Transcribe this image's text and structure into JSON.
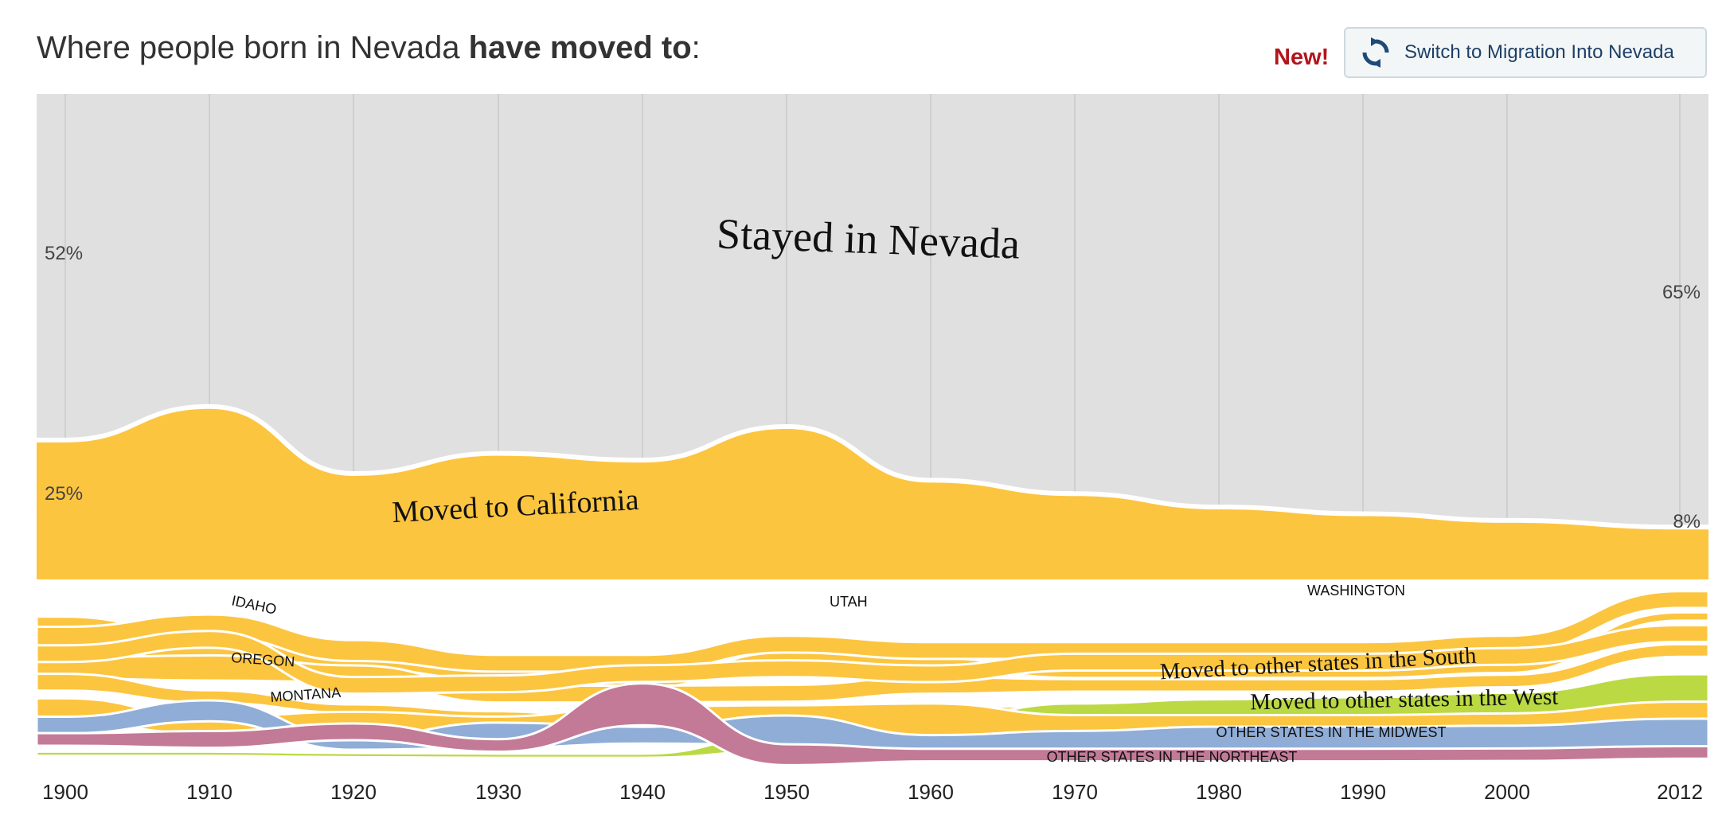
{
  "header": {
    "title_prefix": "Where people born in Nevada ",
    "title_bold": "have moved to",
    "title_suffix": ":",
    "new_badge": "New!",
    "switch_label": "Switch to Migration Into Nevada"
  },
  "colors": {
    "stayed": "#e0e0e0",
    "west": "#fcc540",
    "south": "#bbd943",
    "midwest": "#8fadd6",
    "northeast": "#c37a96",
    "grid": "#c9c9c9",
    "alert": "#b3141c",
    "button_text": "#1d3f66"
  },
  "chart_data": {
    "type": "area",
    "title": "Where people born in Nevada have moved to:",
    "x": [
      1900,
      1910,
      1920,
      1930,
      1940,
      1950,
      1960,
      1970,
      1980,
      1990,
      2000,
      2012
    ],
    "tick_labels": [
      "1900",
      "1910",
      "1920",
      "1930",
      "1940",
      "1950",
      "1960",
      "1970",
      "1980",
      "1990",
      "2000",
      "2012"
    ],
    "unit": "percent",
    "ylim": [
      0,
      100
    ],
    "grid": true,
    "series": [
      {
        "name": "Stayed in Nevada",
        "values": [
          52,
          47,
          57,
          54,
          55,
          50,
          58,
          60,
          62,
          63,
          64,
          65
        ]
      },
      {
        "name": "Moved to California",
        "values": [
          25,
          30,
          24,
          29,
          28,
          30,
          23,
          21,
          19,
          18,
          16,
          8
        ]
      },
      {
        "name": "IDAHO",
        "values": [
          2,
          4,
          1.5,
          1.5,
          1,
          1,
          1,
          1,
          1,
          1,
          1,
          1
        ]
      },
      {
        "name": "OREGON",
        "values": [
          2.5,
          3,
          2,
          2,
          2,
          2,
          2,
          1.5,
          1.5,
          1.5,
          1.5,
          1.5
        ]
      },
      {
        "name": "MONTANA",
        "values": [
          2,
          1.5,
          1,
          0.8,
          0.6,
          0.5,
          0.5,
          0.5,
          0.5,
          0.5,
          0.5,
          0.5
        ]
      },
      {
        "name": "UTAH",
        "values": [
          3,
          2.5,
          2.5,
          2,
          2,
          2,
          2,
          2,
          2,
          2,
          2,
          2
        ]
      },
      {
        "name": "WASHINGTON",
        "values": [
          2,
          2,
          2,
          2,
          2,
          2,
          2,
          2,
          2,
          2,
          2,
          2
        ]
      },
      {
        "name": "Moved to other states in the South",
        "values": [
          0.5,
          0.5,
          0.5,
          0.5,
          0.5,
          2,
          3,
          4,
          5,
          5.5,
          6,
          6.5
        ]
      },
      {
        "name": "Moved to other states in the West",
        "values": [
          3,
          2,
          2,
          2,
          2,
          3,
          4,
          4,
          4,
          4,
          4,
          4
        ]
      },
      {
        "name": "OTHER STATES IN THE MIDWEST",
        "values": [
          2,
          2.5,
          1.5,
          3,
          2,
          3.5,
          2,
          3,
          4,
          4,
          4,
          4
        ]
      },
      {
        "name": "OTHER STATES IN THE NORTHEAST",
        "values": [
          1.5,
          2,
          2,
          1.5,
          5,
          2.5,
          1.5,
          1.5,
          1.5,
          1.5,
          1.5,
          1.5
        ]
      }
    ],
    "annotations": [
      {
        "text": "52%",
        "year": 1900,
        "value_label": "Stayed in Nevada"
      },
      {
        "text": "25%",
        "year": 1900,
        "value_label": "Moved to California"
      },
      {
        "text": "65%",
        "year": 2012,
        "value_label": "Stayed in Nevada"
      },
      {
        "text": "8%",
        "year": 2012,
        "value_label": "Moved to California"
      }
    ]
  }
}
